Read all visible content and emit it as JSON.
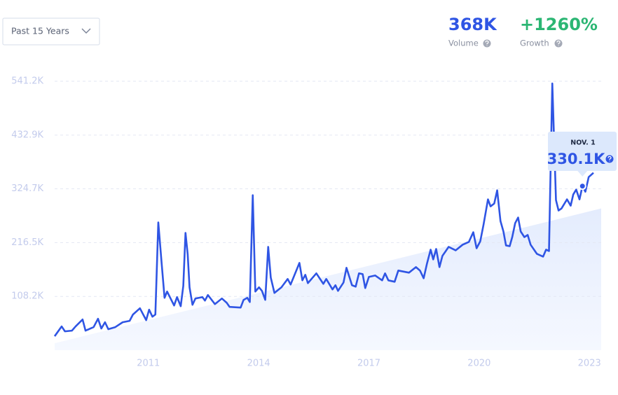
{
  "header": {
    "range_selector": "Past 15 Years",
    "volume": "368K",
    "volume_label": "Volume",
    "growth": "+1260%",
    "growth_label": "Growth"
  },
  "chart_data": {
    "type": "line",
    "xlim": [
      2008.45,
      2023.32
    ],
    "xticks": [
      2011,
      2014,
      2017,
      2020,
      2023
    ],
    "ylim": [
      0,
      541.2
    ],
    "yticks": [
      {
        "value": 108.2,
        "label": "108.2K"
      },
      {
        "value": 216.5,
        "label": "216.5K"
      },
      {
        "value": 324.7,
        "label": "324.7K"
      },
      {
        "value": 432.9,
        "label": "432.9K"
      },
      {
        "value": 541.2,
        "label": "541.2K"
      }
    ],
    "grid": true,
    "series": [
      {
        "color": "#2f55e4",
        "x": [
          2008.45,
          2008.64,
          2008.73,
          2008.92,
          2009.02,
          2009.21,
          2009.29,
          2009.51,
          2009.63,
          2009.72,
          2009.82,
          2009.91,
          2010.1,
          2010.3,
          2010.49,
          2010.58,
          2010.77,
          2010.94,
          2011.02,
          2011.11,
          2011.19,
          2011.27,
          2011.36,
          2011.44,
          2011.51,
          2011.7,
          2011.78,
          2011.88,
          2011.95,
          2012.01,
          2012.07,
          2012.12,
          2012.2,
          2012.28,
          2012.47,
          2012.54,
          2012.62,
          2012.81,
          2013.0,
          2013.13,
          2013.21,
          2013.51,
          2013.59,
          2013.69,
          2013.76,
          2013.84,
          2013.91,
          2014.01,
          2014.09,
          2014.18,
          2014.26,
          2014.33,
          2014.43,
          2014.62,
          2014.79,
          2014.87,
          2015.11,
          2015.19,
          2015.27,
          2015.34,
          2015.57,
          2015.76,
          2015.84,
          2016.01,
          2016.09,
          2016.16,
          2016.31,
          2016.39,
          2016.54,
          2016.64,
          2016.73,
          2016.83,
          2016.9,
          2017.0,
          2017.17,
          2017.36,
          2017.44,
          2017.53,
          2017.7,
          2017.8,
          2018.09,
          2018.28,
          2018.39,
          2018.49,
          2018.58,
          2018.68,
          2018.75,
          2018.83,
          2018.92,
          2019.0,
          2019.17,
          2019.36,
          2019.55,
          2019.72,
          2019.84,
          2019.93,
          2020.03,
          2020.12,
          2020.24,
          2020.31,
          2020.41,
          2020.49,
          2020.58,
          2020.66,
          2020.73,
          2020.83,
          2020.9,
          2020.98,
          2021.06,
          2021.13,
          2021.23,
          2021.32,
          2021.4,
          2021.57,
          2021.74,
          2021.82,
          2021.9,
          2021.99,
          2022.09,
          2022.16,
          2022.24,
          2022.39,
          2022.49,
          2022.56,
          2022.64,
          2022.73,
          2022.81,
          2022.89,
          2022.98,
          2023.11
        ],
        "values": [
          28.1,
          47.8,
          37.9,
          39.3,
          47.8,
          61.8,
          39.3,
          46.4,
          63.2,
          43.6,
          56.2,
          42.2,
          46.4,
          56.2,
          59.0,
          71.7,
          84.3,
          60.4,
          81.5,
          67.4,
          71.7,
          257.1,
          175.6,
          105.4,
          118.0,
          89.9,
          106.8,
          88.5,
          129.3,
          236.0,
          192.5,
          126.5,
          91.3,
          104.0,
          106.8,
          99.8,
          111.0,
          92.7,
          104.0,
          95.5,
          87.1,
          85.7,
          101.2,
          105.4,
          96.9,
          311.9,
          118.0,
          126.5,
          119.4,
          101.2,
          207.9,
          146.1,
          115.2,
          126.5,
          143.3,
          132.1,
          175.6,
          140.5,
          151.7,
          134.9,
          154.6,
          133.5,
          143.3,
          122.2,
          130.7,
          119.4,
          136.3,
          165.8,
          130.7,
          127.9,
          154.6,
          153.1,
          125.0,
          147.5,
          150.3,
          140.5,
          154.6,
          140.5,
          137.7,
          160.2,
          156.0,
          167.2,
          160.2,
          144.7,
          174.2,
          202.3,
          182.7,
          203.7,
          167.2,
          189.7,
          207.9,
          200.9,
          212.2,
          217.8,
          237.4,
          205.1,
          219.2,
          252.9,
          303.5,
          289.4,
          295.1,
          321.7,
          259.9,
          238.9,
          210.8,
          209.3,
          227.6,
          255.7,
          267.0,
          238.9,
          227.6,
          231.8,
          212.2,
          193.9,
          188.3,
          202.3,
          199.5,
          536.7,
          302.1,
          281.0,
          285.2,
          303.5,
          290.8,
          313.3,
          323.2,
          303.5,
          330.1,
          318.9,
          348.4,
          356.9
        ]
      }
    ],
    "trend": {
      "color": "#e9effd",
      "x": [
        2008.45,
        2023.32
      ],
      "values": [
        14.0,
        285.2
      ]
    },
    "tooltip": {
      "date": "NOV. 1",
      "x": 2022.81,
      "value": 330.1,
      "value_label": "330.1K"
    }
  }
}
